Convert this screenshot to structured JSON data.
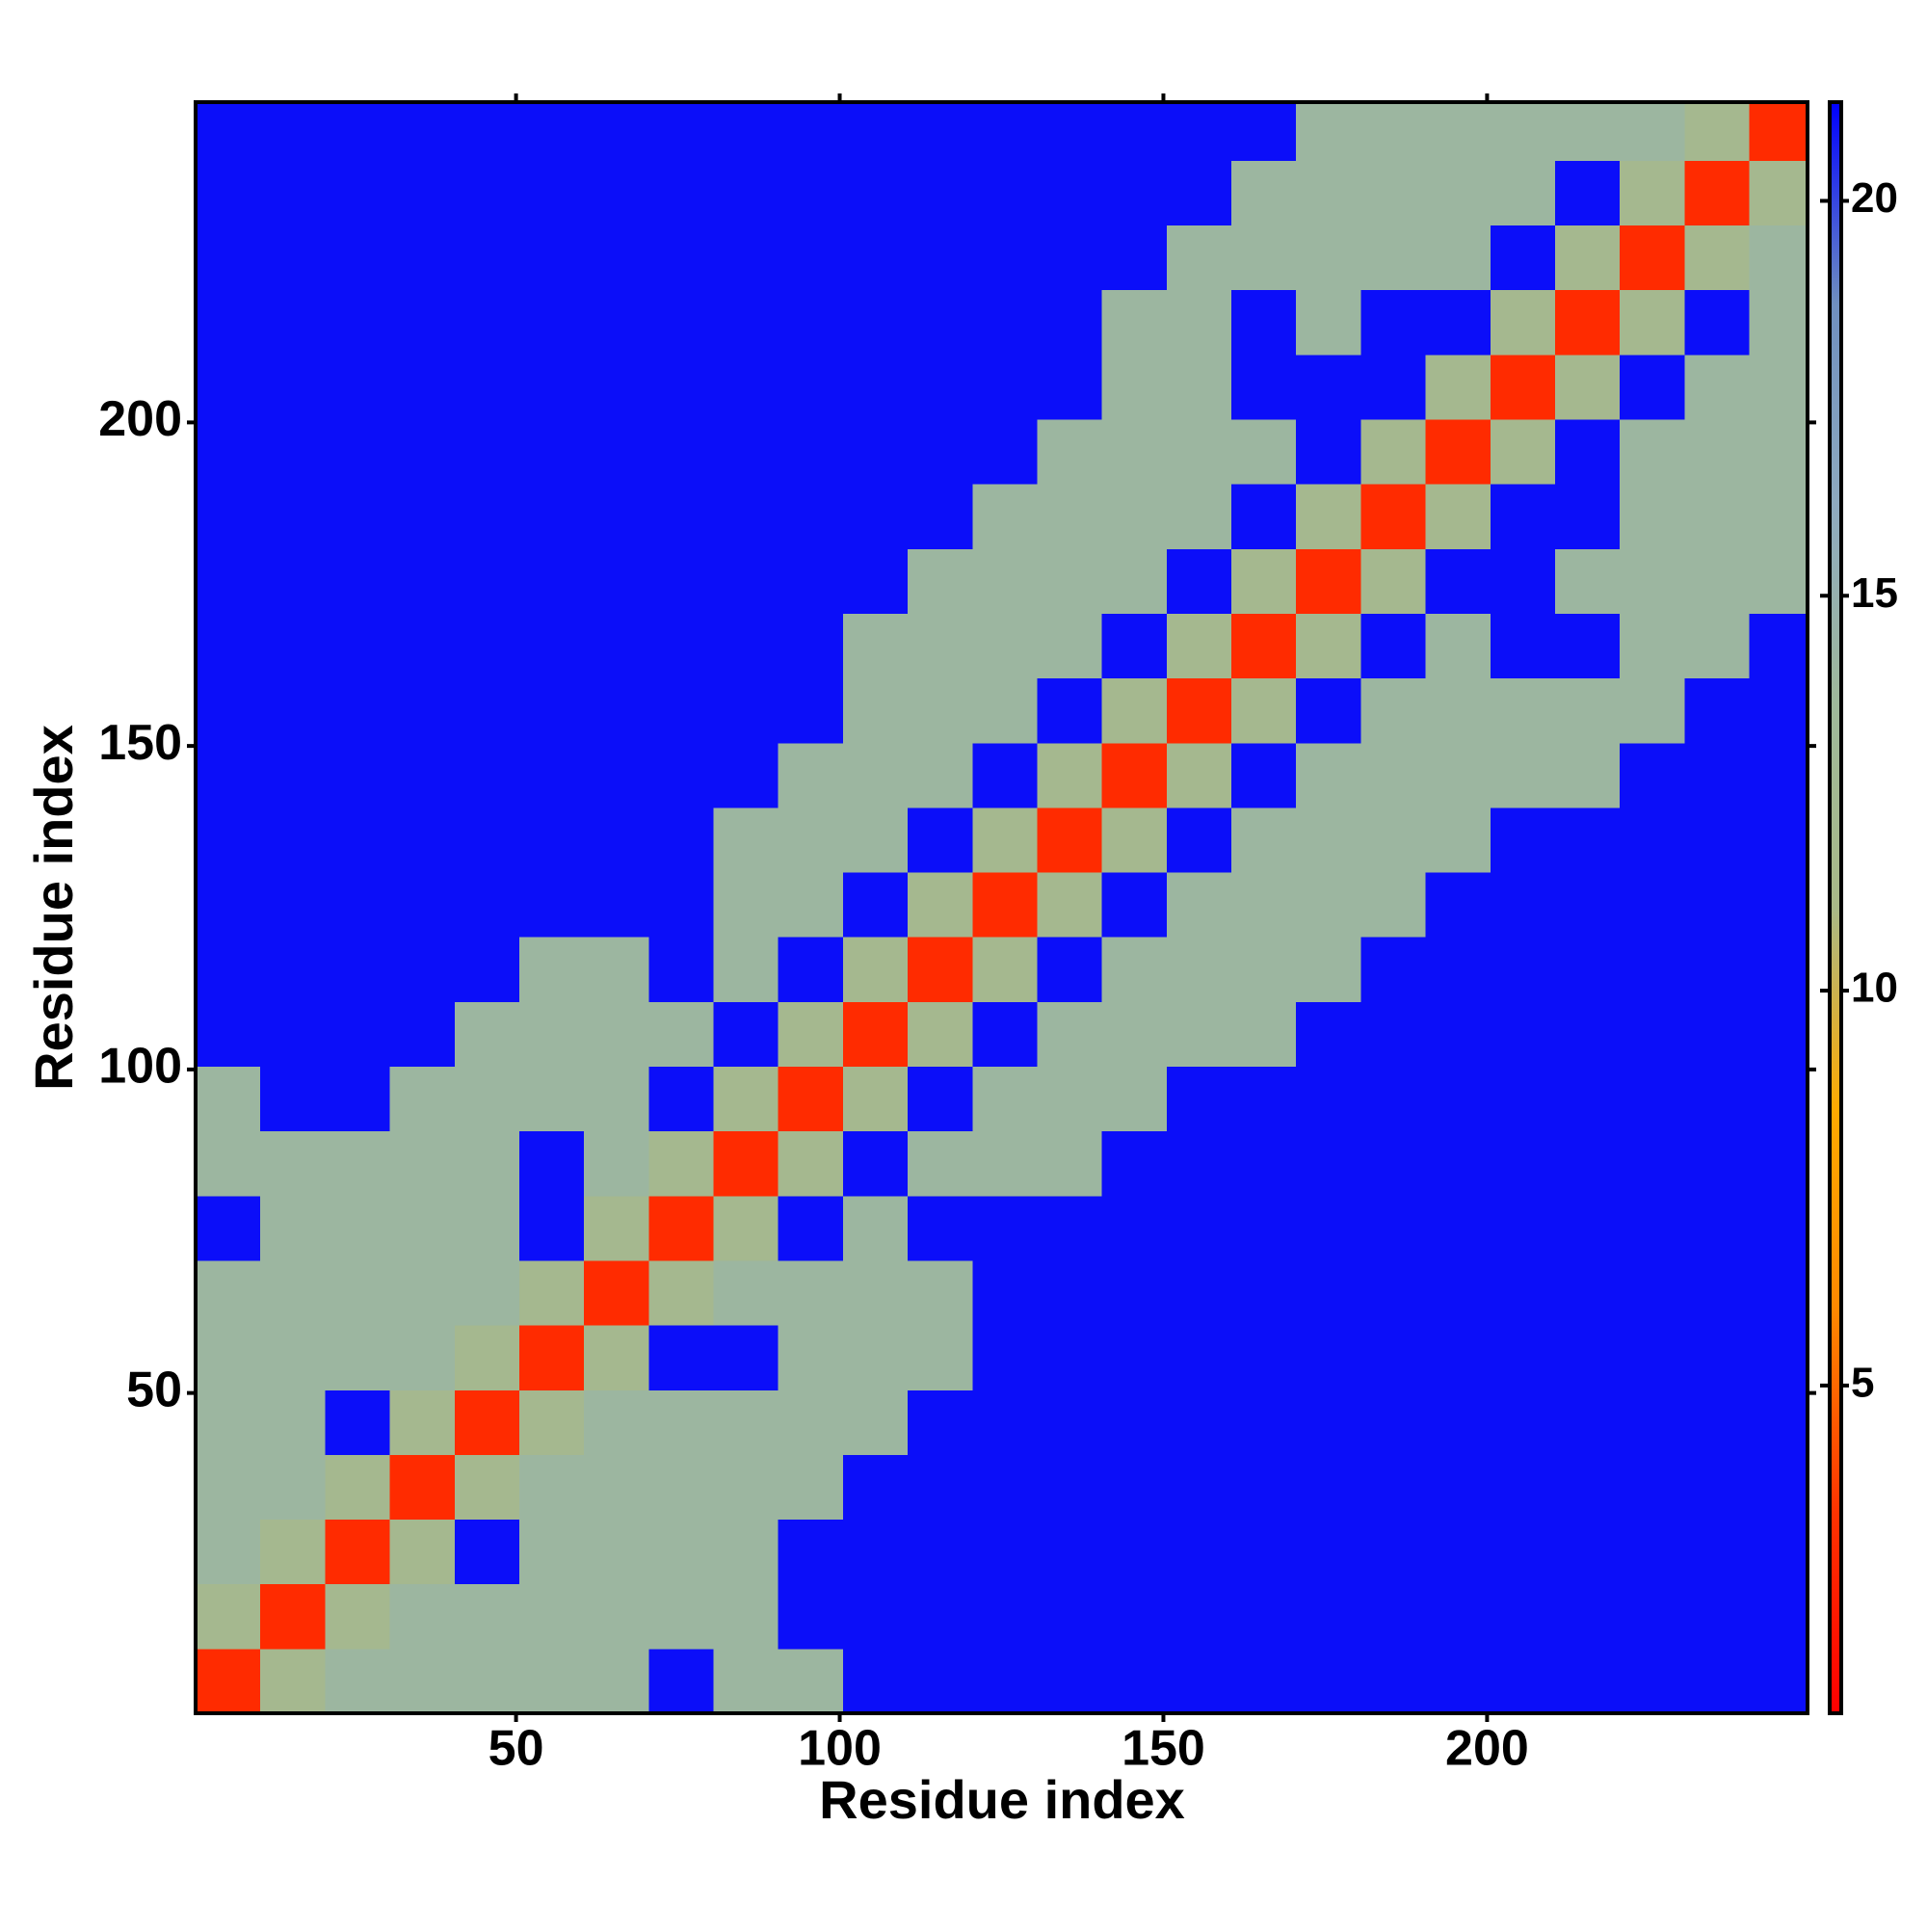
{
  "chart_data": {
    "type": "heatmap",
    "xlabel": "Residue index",
    "ylabel": "Residue index",
    "x_bins": [
      0.5,
      10.5,
      20.5,
      30.5,
      40.5,
      50.5,
      60.5,
      70.5,
      80.5,
      90.5,
      100.5,
      110.5,
      120.5,
      130.5,
      140.5,
      150.5,
      160.5,
      170.5,
      180.5,
      190.5,
      200.5,
      210.5,
      220.5,
      230.5,
      240.5,
      249.5
    ],
    "y_bins": [
      0.5,
      10.5,
      20.5,
      30.5,
      40.5,
      50.5,
      60.5,
      70.5,
      80.5,
      90.5,
      100.5,
      110.5,
      120.5,
      130.5,
      140.5,
      150.5,
      160.5,
      170.5,
      180.5,
      190.5,
      200.5,
      210.5,
      220.5,
      230.5,
      240.5,
      249.5
    ],
    "xlim": [
      0.5,
      249.5
    ],
    "ylim": [
      0.5,
      249.5
    ],
    "xticks": [
      50,
      100,
      150,
      200
    ],
    "yticks": [
      50,
      100,
      150,
      200
    ],
    "clim": [
      0.85,
      21.25
    ],
    "cticks": [
      5,
      10,
      15,
      20
    ],
    "colors": [
      "#ff0000",
      "#ff3300",
      "#ff8800",
      "#ffaa00",
      "#a8b888",
      "#9fb89a",
      "#8eaac0",
      "#6f8fc0",
      "#0000ff"
    ],
    "z": [
      [
        3,
        12,
        14,
        14,
        14,
        14,
        14,
        21,
        14,
        14,
        21,
        21,
        21,
        21,
        21,
        21,
        21,
        21,
        21,
        21,
        21,
        21,
        21,
        21,
        21
      ],
      [
        12,
        3,
        12,
        14,
        14,
        14,
        14,
        14,
        14,
        21,
        21,
        21,
        21,
        21,
        21,
        21,
        21,
        21,
        21,
        21,
        21,
        21,
        21,
        21,
        21
      ],
      [
        14,
        12,
        3,
        12,
        21,
        14,
        14,
        14,
        14,
        21,
        21,
        21,
        21,
        21,
        21,
        21,
        21,
        21,
        21,
        21,
        21,
        21,
        21,
        21,
        21
      ],
      [
        14,
        14,
        12,
        3,
        12,
        14,
        14,
        14,
        14,
        14,
        21,
        21,
        21,
        21,
        21,
        21,
        21,
        21,
        21,
        21,
        21,
        21,
        21,
        21,
        21
      ],
      [
        14,
        14,
        21,
        12,
        3,
        12,
        14,
        14,
        14,
        14,
        14,
        21,
        21,
        21,
        21,
        21,
        21,
        21,
        21,
        21,
        21,
        21,
        21,
        21,
        21
      ],
      [
        14,
        14,
        14,
        14,
        12,
        3,
        12,
        21,
        21,
        14,
        14,
        14,
        21,
        21,
        21,
        21,
        21,
        21,
        21,
        21,
        21,
        21,
        21,
        21,
        21
      ],
      [
        14,
        14,
        14,
        14,
        14,
        12,
        3,
        12,
        14,
        14,
        14,
        14,
        21,
        21,
        21,
        21,
        21,
        21,
        21,
        21,
        21,
        21,
        21,
        21,
        21
      ],
      [
        21,
        14,
        14,
        14,
        14,
        21,
        12,
        3,
        12,
        21,
        14,
        21,
        21,
        21,
        21,
        21,
        21,
        21,
        21,
        21,
        21,
        21,
        21,
        21,
        21
      ],
      [
        14,
        14,
        14,
        14,
        14,
        21,
        14,
        12,
        3,
        12,
        21,
        14,
        14,
        14,
        21,
        21,
        21,
        21,
        21,
        21,
        21,
        21,
        21,
        21,
        21
      ],
      [
        14,
        21,
        21,
        14,
        14,
        14,
        14,
        21,
        12,
        3,
        12,
        21,
        14,
        14,
        14,
        21,
        21,
        21,
        21,
        21,
        21,
        21,
        21,
        21,
        21
      ],
      [
        21,
        21,
        21,
        21,
        14,
        14,
        14,
        14,
        21,
        12,
        3,
        12,
        21,
        14,
        14,
        14,
        14,
        21,
        21,
        21,
        21,
        21,
        21,
        21,
        21
      ],
      [
        21,
        21,
        21,
        21,
        21,
        14,
        14,
        21,
        14,
        21,
        12,
        3,
        12,
        21,
        14,
        14,
        14,
        14,
        21,
        21,
        21,
        21,
        21,
        21,
        21
      ],
      [
        21,
        21,
        21,
        21,
        21,
        21,
        21,
        21,
        14,
        14,
        21,
        12,
        3,
        12,
        21,
        14,
        14,
        14,
        14,
        21,
        21,
        21,
        21,
        21,
        21
      ],
      [
        21,
        21,
        21,
        21,
        21,
        21,
        21,
        21,
        14,
        14,
        14,
        21,
        12,
        3,
        12,
        21,
        14,
        14,
        14,
        14,
        21,
        21,
        21,
        21,
        21
      ],
      [
        21,
        21,
        21,
        21,
        21,
        21,
        21,
        21,
        21,
        14,
        14,
        14,
        21,
        12,
        3,
        12,
        21,
        14,
        14,
        14,
        14,
        14,
        21,
        21,
        21
      ],
      [
        21,
        21,
        21,
        21,
        21,
        21,
        21,
        21,
        21,
        21,
        14,
        14,
        14,
        21,
        12,
        3,
        12,
        21,
        14,
        14,
        14,
        14,
        14,
        21,
        21
      ],
      [
        21,
        21,
        21,
        21,
        21,
        21,
        21,
        21,
        21,
        21,
        14,
        14,
        14,
        14,
        21,
        12,
        3,
        12,
        21,
        14,
        21,
        21,
        14,
        14,
        21
      ],
      [
        21,
        21,
        21,
        21,
        21,
        21,
        21,
        21,
        21,
        21,
        21,
        14,
        14,
        14,
        14,
        21,
        12,
        3,
        12,
        21,
        21,
        14,
        14,
        14,
        14
      ],
      [
        21,
        21,
        21,
        21,
        21,
        21,
        21,
        21,
        21,
        21,
        21,
        21,
        14,
        14,
        14,
        14,
        21,
        12,
        3,
        12,
        21,
        21,
        14,
        14,
        14
      ],
      [
        21,
        21,
        21,
        21,
        21,
        21,
        21,
        21,
        21,
        21,
        21,
        21,
        21,
        14,
        14,
        14,
        14,
        21,
        12,
        3,
        12,
        21,
        14,
        14,
        14
      ],
      [
        21,
        21,
        21,
        21,
        21,
        21,
        21,
        21,
        21,
        21,
        21,
        21,
        21,
        21,
        14,
        14,
        21,
        21,
        21,
        12,
        3,
        12,
        21,
        14,
        14
      ],
      [
        21,
        21,
        21,
        21,
        21,
        21,
        21,
        21,
        21,
        21,
        21,
        21,
        21,
        21,
        14,
        14,
        21,
        14,
        21,
        21,
        12,
        3,
        12,
        21,
        14
      ],
      [
        21,
        21,
        21,
        21,
        21,
        21,
        21,
        21,
        21,
        21,
        21,
        21,
        21,
        21,
        21,
        14,
        14,
        14,
        14,
        14,
        21,
        12,
        3,
        12,
        14
      ],
      [
        21,
        21,
        21,
        21,
        21,
        21,
        21,
        21,
        21,
        21,
        21,
        21,
        21,
        21,
        21,
        21,
        14,
        14,
        14,
        14,
        14,
        21,
        12,
        3,
        12
      ],
      [
        21,
        21,
        21,
        21,
        21,
        21,
        21,
        21,
        21,
        21,
        21,
        21,
        21,
        21,
        21,
        21,
        21,
        14,
        14,
        14,
        14,
        14,
        14,
        12,
        3
      ]
    ]
  }
}
